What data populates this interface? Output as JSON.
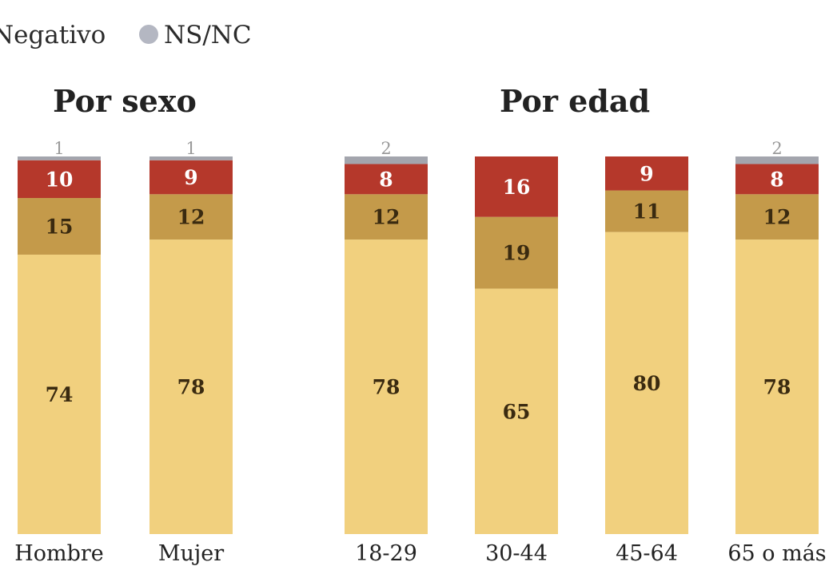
{
  "chart_data": {
    "type": "bar",
    "stacked": true,
    "legend": [
      {
        "label": "Negativo",
        "color": "#b5382b"
      },
      {
        "label": "NS/NC",
        "color": "#b4b7c2"
      }
    ],
    "series": [
      {
        "key": "s1",
        "color": "#f1d07e",
        "label_color": "#3a2a10"
      },
      {
        "key": "s2",
        "color": "#c49a4a",
        "label_color": "#3a2a10"
      },
      {
        "key": "negativo",
        "color": "#b5382b",
        "label_color": "#ffffff"
      },
      {
        "key": "nsnc",
        "color": "#a3a5ad",
        "label_color": "#9a9a9a"
      }
    ],
    "groups": [
      {
        "title": "Por sexo",
        "bars": [
          {
            "category": "Hombre",
            "values": [
              74,
              15,
              10,
              1
            ]
          },
          {
            "category": "Mujer",
            "values": [
              78,
              12,
              9,
              1
            ]
          }
        ]
      },
      {
        "title": "Por edad",
        "bars": [
          {
            "category": "18-29",
            "values": [
              78,
              12,
              8,
              2
            ]
          },
          {
            "category": "30-44",
            "values": [
              65,
              19,
              16,
              0
            ]
          },
          {
            "category": "45-64",
            "values": [
              80,
              11,
              9,
              0
            ]
          },
          {
            "category": "65 o más",
            "values": [
              78,
              12,
              8,
              2
            ]
          }
        ]
      }
    ],
    "ylim": [
      0,
      100
    ]
  }
}
